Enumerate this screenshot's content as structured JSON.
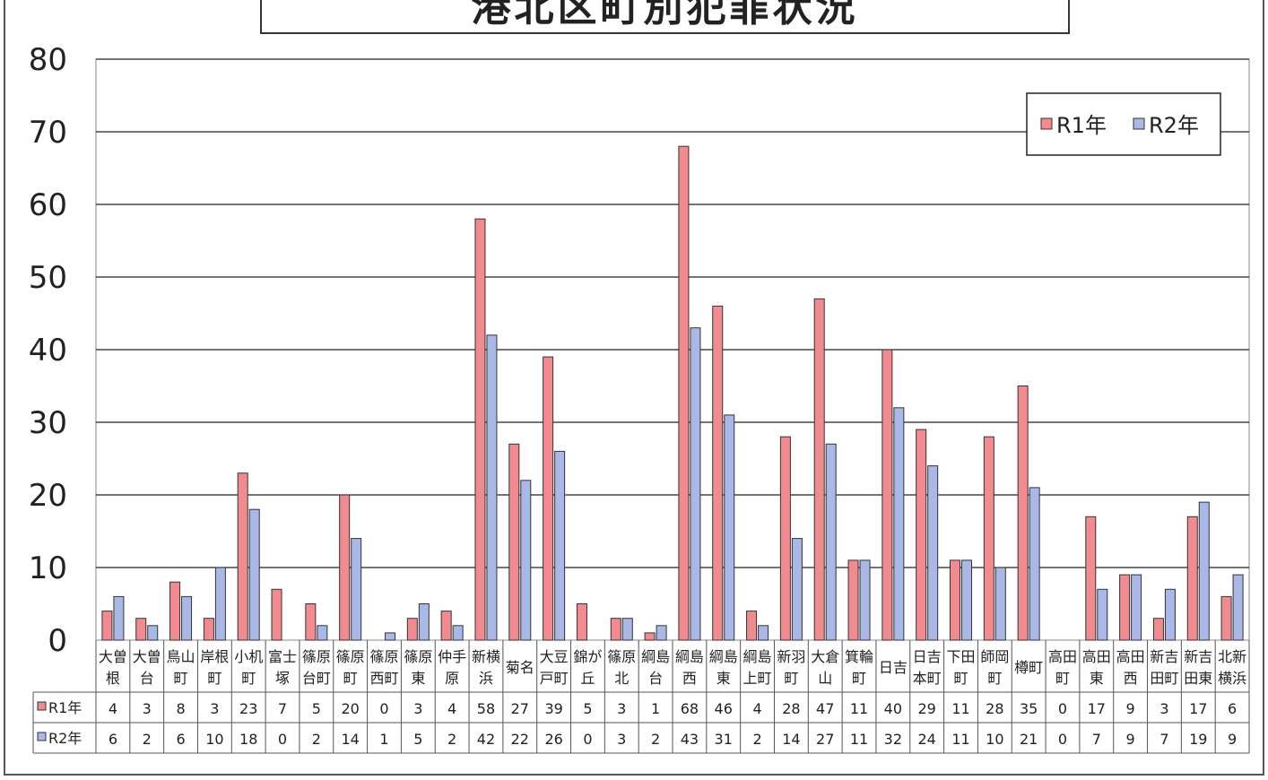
{
  "title": "港北区町別犯罪状況",
  "colors": {
    "r1": "#f28b8f",
    "r2": "#a9b8e6",
    "grid": "#222222"
  },
  "chart_data": {
    "type": "bar",
    "title": "港北区町別犯罪状況",
    "ylim": [
      0,
      80
    ],
    "yticks": [
      0,
      10,
      20,
      30,
      40,
      50,
      60,
      70,
      80
    ],
    "grid": true,
    "legend_position": "top-right",
    "categories": [
      [
        "大曽",
        "根"
      ],
      [
        "大曽",
        "台"
      ],
      [
        "鳥山",
        "町"
      ],
      [
        "岸根",
        "町"
      ],
      [
        "小机",
        "町"
      ],
      [
        "富士",
        "塚"
      ],
      [
        "篠原",
        "台町"
      ],
      [
        "篠原",
        "町"
      ],
      [
        "篠原",
        "西町"
      ],
      [
        "篠原",
        "東"
      ],
      [
        "仲手",
        "原"
      ],
      [
        "新横",
        "浜"
      ],
      [
        "菊名"
      ],
      [
        "大豆",
        "戸町"
      ],
      [
        "錦が",
        "丘"
      ],
      [
        "篠原",
        "北"
      ],
      [
        "綱島",
        "台"
      ],
      [
        "綱島",
        "西"
      ],
      [
        "綱島",
        "東"
      ],
      [
        "綱島",
        "上町"
      ],
      [
        "新羽",
        "町"
      ],
      [
        "大倉",
        "山"
      ],
      [
        "箕輪",
        "町"
      ],
      [
        "日吉"
      ],
      [
        "日吉",
        "本町"
      ],
      [
        "下田",
        "町"
      ],
      [
        "師岡",
        "町"
      ],
      [
        "樽町"
      ],
      [
        "高田",
        "町"
      ],
      [
        "高田",
        "東"
      ],
      [
        "高田",
        "西"
      ],
      [
        "新吉",
        "田町"
      ],
      [
        "新吉",
        "田東"
      ],
      [
        "北新",
        "横浜"
      ]
    ],
    "series": [
      {
        "name": "R1年",
        "values": [
          4,
          3,
          8,
          3,
          23,
          7,
          5,
          20,
          0,
          3,
          4,
          58,
          27,
          39,
          5,
          3,
          1,
          68,
          46,
          4,
          28,
          47,
          11,
          40,
          29,
          11,
          28,
          35,
          0,
          17,
          9,
          3,
          17,
          6
        ]
      },
      {
        "name": "R2年",
        "values": [
          6,
          2,
          6,
          10,
          18,
          0,
          2,
          14,
          1,
          5,
          2,
          42,
          22,
          26,
          0,
          3,
          2,
          43,
          31,
          2,
          14,
          27,
          11,
          32,
          24,
          11,
          10,
          21,
          0,
          7,
          9,
          7,
          19,
          9
        ]
      }
    ]
  }
}
